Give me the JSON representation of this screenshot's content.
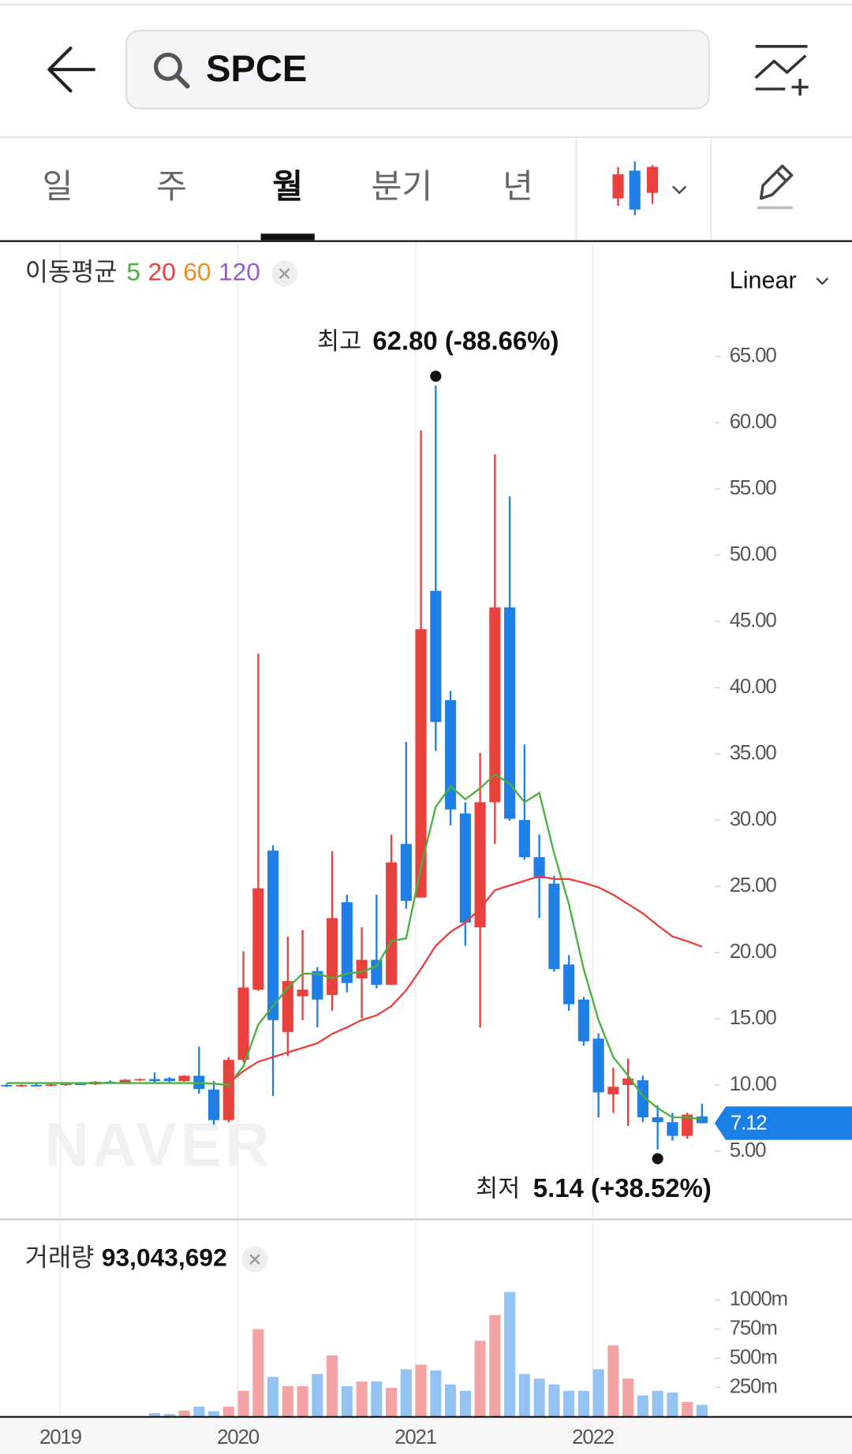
{
  "header": {
    "search": "SPCE"
  },
  "tabs": {
    "items": [
      "일",
      "주",
      "월",
      "분기",
      "년"
    ],
    "active": 2
  },
  "chart_data": [
    {
      "type": "candlestick",
      "categories": [
        null,
        null,
        null,
        null,
        "2019",
        null,
        null,
        null,
        null,
        null,
        null,
        null,
        null,
        null,
        null,
        null,
        "2020",
        null,
        null,
        null,
        null,
        null,
        null,
        null,
        null,
        null,
        null,
        null,
        "2021",
        null,
        null,
        null,
        null,
        null,
        null,
        null,
        null,
        null,
        null,
        null,
        "2022",
        null,
        null,
        null,
        null,
        null,
        null,
        null
      ],
      "open": [
        10.0,
        9.9,
        10.0,
        9.95,
        10.05,
        10.1,
        10.05,
        10.25,
        10.2,
        10.4,
        10.45,
        10.5,
        10.3,
        10.7,
        9.66,
        7.35,
        11.9,
        17.2,
        27.7,
        14.0,
        16.7,
        18.6,
        16.8,
        23.8,
        18.05,
        19.45,
        17.57,
        28.2,
        24.15,
        47.3,
        39.05,
        30.5,
        21.9,
        31.35,
        46.05,
        30.0,
        27.2,
        25.2,
        19.1,
        16.45,
        13.5,
        9.3,
        10.0,
        10.36,
        7.56,
        7.2,
        6.16,
        7.63
      ],
      "high": [
        10.1,
        10.05,
        10.1,
        10.1,
        10.15,
        10.2,
        10.3,
        10.35,
        10.45,
        10.5,
        10.95,
        10.6,
        10.75,
        12.9,
        10.3,
        12.1,
        20.1,
        42.55,
        28.1,
        21.2,
        21.7,
        18.9,
        27.65,
        24.36,
        21.9,
        24.36,
        28.9,
        35.9,
        59.4,
        62.8,
        39.75,
        31.35,
        35.06,
        57.6,
        54.45,
        35.7,
        28.9,
        25.8,
        19.8,
        16.65,
        13.9,
        11.3,
        12.0,
        10.71,
        8.47,
        7.9,
        7.9,
        8.6
      ],
      "low": [
        9.85,
        9.85,
        9.9,
        9.9,
        9.95,
        10.0,
        10.0,
        10.1,
        10.15,
        10.3,
        10.2,
        10.2,
        10.25,
        9.35,
        7.0,
        7.2,
        11.7,
        17.1,
        9.17,
        12.2,
        14.9,
        14.35,
        15.6,
        17.0,
        15.05,
        17.3,
        17.57,
        23.3,
        24.15,
        35.2,
        29.6,
        20.5,
        14.35,
        28.2,
        29.95,
        27.0,
        22.6,
        18.55,
        15.6,
        12.96,
        7.55,
        7.9,
        6.9,
        7.2,
        5.14,
        5.8,
        5.95,
        7.1
      ],
      "close": [
        9.9,
        10.0,
        9.95,
        10.05,
        10.1,
        10.05,
        10.25,
        10.2,
        10.4,
        10.45,
        10.3,
        10.3,
        10.7,
        9.7,
        7.35,
        11.9,
        17.36,
        24.85,
        14.9,
        17.85,
        17.2,
        16.45,
        22.6,
        17.7,
        19.45,
        17.57,
        26.8,
        23.9,
        44.4,
        37.4,
        30.8,
        22.25,
        31.35,
        46.05,
        30.1,
        27.2,
        25.6,
        18.75,
        16.1,
        13.3,
        9.45,
        9.87,
        10.5,
        7.56,
        7.2,
        6.16,
        7.77,
        7.12
      ],
      "up_color": "#e8413e",
      "down_color": "#1f7fe6",
      "ylim": [
        0,
        69.5
      ],
      "yticks": [
        {
          "value": 5,
          "label": "5.00"
        },
        {
          "value": 10,
          "label": "10.00"
        },
        {
          "value": 15,
          "label": "15.00"
        },
        {
          "value": 20,
          "label": "20.00"
        },
        {
          "value": 25,
          "label": "25.00"
        },
        {
          "value": 30,
          "label": "30.00"
        },
        {
          "value": 35,
          "label": "35.00"
        },
        {
          "value": 40,
          "label": "40.00"
        },
        {
          "value": 45,
          "label": "45.00"
        },
        {
          "value": 50,
          "label": "50.00"
        },
        {
          "value": 55,
          "label": "55.00"
        },
        {
          "value": 60,
          "label": "60.00"
        },
        {
          "value": 65,
          "label": "65.00"
        }
      ],
      "moving_averages": {
        "label": "이동평균",
        "series": [
          {
            "name": "5",
            "color": "#4cb040",
            "values": [
              10.15,
              10.15,
              10.15,
              10.15,
              10.15,
              10.15,
              10.15,
              10.15,
              10.15,
              10.15,
              10.15,
              10.15,
              10.15,
              10.15,
              10.1,
              10.01,
              11.41,
              14.56,
              15.96,
              17.36,
              18.41,
              18.41,
              18.06,
              18.41,
              18.55,
              18.97,
              20.86,
              21.07,
              26.46,
              31.0,
              32.55,
              31.57,
              32.4,
              33.45,
              32.75,
              31.35,
              32.05,
              27.5,
              23.66,
              18.76,
              14.91,
              12.11,
              10.71,
              9.17,
              8.26,
              7.56,
              7.56,
              7.42
            ]
          },
          {
            "name": "20",
            "color": "#e8413e",
            "values": [
              null,
              null,
              null,
              null,
              null,
              null,
              null,
              null,
              null,
              null,
              null,
              null,
              null,
              null,
              null,
              10.15,
              11.06,
              11.76,
              12.11,
              12.46,
              12.81,
              13.16,
              13.86,
              14.35,
              14.91,
              15.26,
              15.96,
              17.15,
              18.76,
              20.51,
              21.56,
              22.26,
              23.31,
              24.71,
              25.06,
              25.41,
              25.76,
              25.55,
              25.55,
              25.27,
              24.92,
              24.36,
              23.66,
              22.96,
              22.05,
              21.21,
              20.86,
              20.44
            ]
          },
          {
            "name": "60",
            "color": "#ef8c1e"
          },
          {
            "name": "120",
            "color": "#9a5cc8"
          }
        ]
      },
      "annotations": [
        {
          "label": "최고",
          "value": 62.8,
          "text": "62.80 (-88.66%)"
        },
        {
          "label": "최저",
          "value": 5.14,
          "text": "5.14 (+38.52%)"
        }
      ],
      "last_price": 7.12,
      "last_price_color": "#1a7fe6",
      "watermark": "NAVER",
      "scale_label": "Linear"
    },
    {
      "type": "bar",
      "title": "거래량",
      "total": {
        "value": 93043692,
        "label": "93,043,692"
      },
      "values": [
        2,
        2,
        2,
        2,
        2,
        2,
        2,
        2,
        2,
        2,
        28,
        20,
        50,
        85,
        45,
        85,
        220,
        750,
        340,
        260,
        260,
        365,
        525,
        260,
        300,
        300,
        245,
        405,
        445,
        395,
        275,
        220,
        650,
        870,
        1070,
        365,
        325,
        275,
        220,
        220,
        405,
        610,
        325,
        180,
        220,
        205,
        125,
        100
      ],
      "up_color": "#f3a3a3",
      "down_color": "#94c3f3",
      "ylim": [
        0,
        1255
      ],
      "yticks": [
        {
          "value": 250,
          "label": "250m"
        },
        {
          "value": 500,
          "label": "500m"
        },
        {
          "value": 750,
          "label": "750m"
        },
        {
          "value": 1000,
          "label": "1000m"
        }
      ]
    }
  ]
}
